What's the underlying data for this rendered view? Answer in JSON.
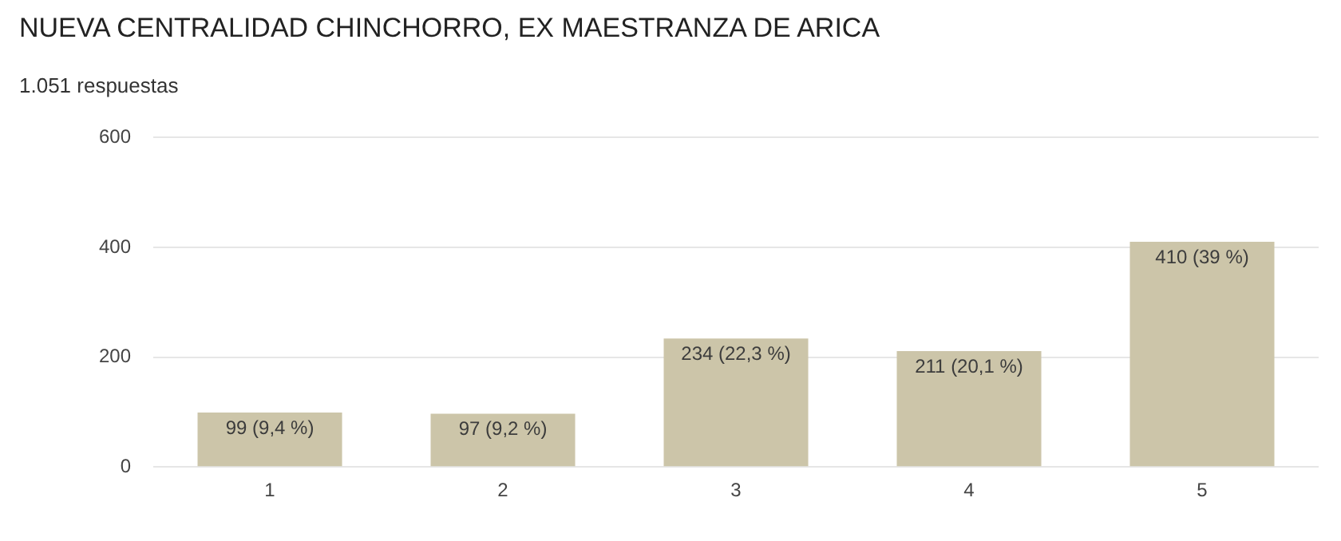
{
  "chart_data": {
    "type": "bar",
    "title": "NUEVA CENTRALIDAD CHINCHORRO, EX MAESTRANZA DE ARICA",
    "subtitle": "1.051 respuestas",
    "categories": [
      "1",
      "2",
      "3",
      "4",
      "5"
    ],
    "values": [
      99,
      97,
      234,
      211,
      410
    ],
    "value_labels": [
      "99 (9,4 %)",
      "97 (9,2 %)",
      "234 (22,3 %)",
      "211 (20,1 %)",
      "410 (39 %)"
    ],
    "color": "#ccc5a9",
    "ylim": [
      0,
      600
    ],
    "yticks": [
      0,
      200,
      400,
      600
    ],
    "grid": "y"
  }
}
